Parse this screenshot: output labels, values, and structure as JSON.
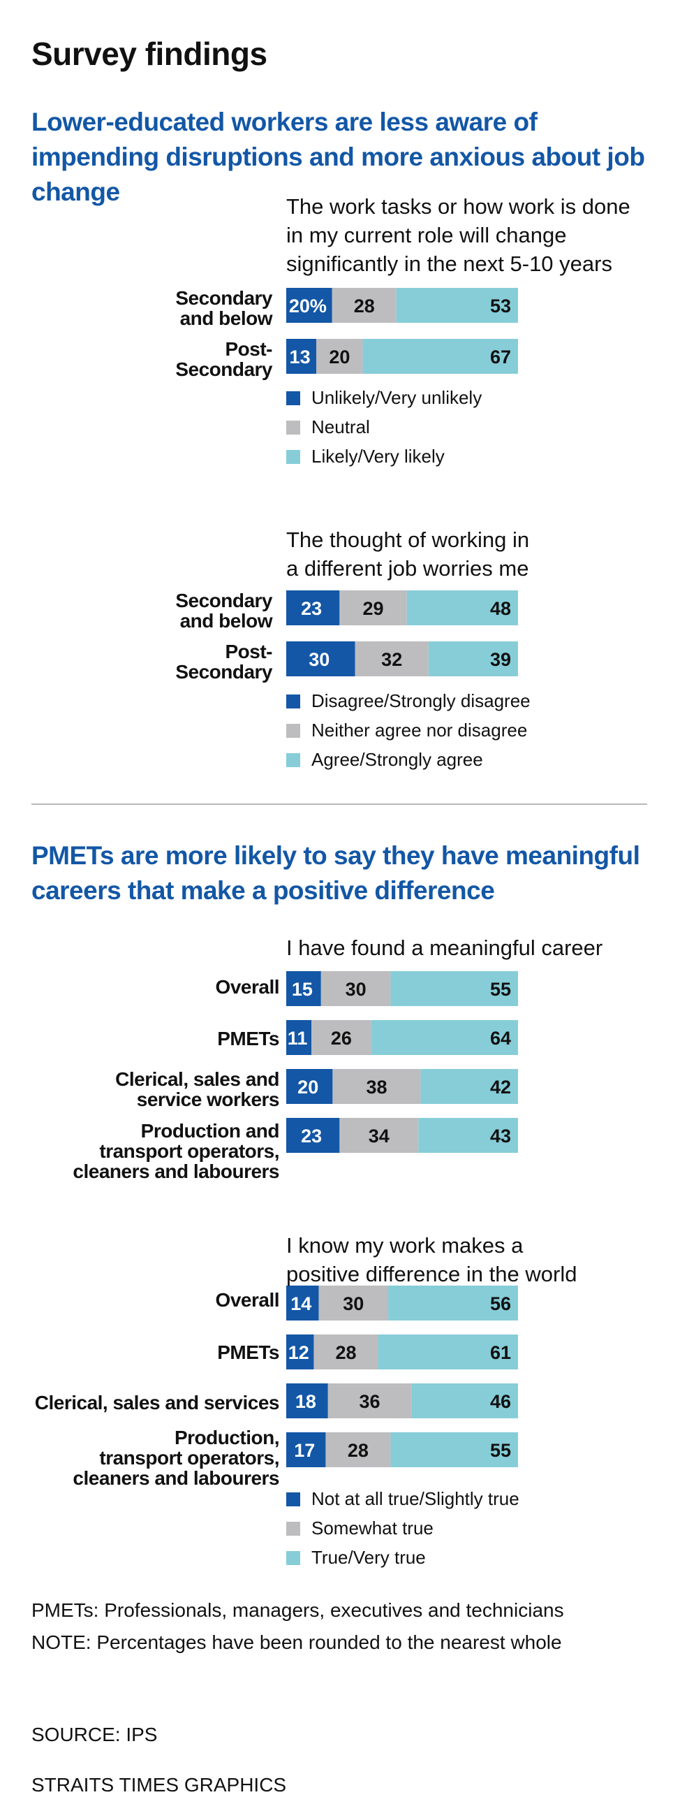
{
  "page_title": "Survey findings",
  "colors": {
    "negative": "#1357a6",
    "neutral": "#bdbdbf",
    "positive": "#86cdd8",
    "heading": "#1357a6"
  },
  "sections": [
    {
      "title": "Lower-educated workers are less aware of impending disruptions and more anxious about job change"
    },
    {
      "title": "PMETs are more likely to say they have meaningful careers that make a positive difference"
    }
  ],
  "chart_data": [
    {
      "type": "bar",
      "orientation": "horizontal-stacked",
      "title": "The work tasks or how work is done in my current role will change significantly in the next 5-10 years",
      "categories": [
        "Secondary and below",
        "Post-Secondary"
      ],
      "series": [
        {
          "name": "Unlikely/Very unlikely",
          "values": [
            20,
            13
          ],
          "labels": [
            "20%",
            "13"
          ]
        },
        {
          "name": "Neutral",
          "values": [
            28,
            20
          ],
          "labels": [
            "28",
            "20"
          ]
        },
        {
          "name": "Likely/Very likely",
          "values": [
            53,
            67
          ],
          "labels": [
            "53",
            "67"
          ]
        }
      ]
    },
    {
      "type": "bar",
      "orientation": "horizontal-stacked",
      "title": "The thought of working in a different job worries me",
      "categories": [
        "Secondary and below",
        "Post-Secondary"
      ],
      "series": [
        {
          "name": "Disagree/Strongly disagree",
          "values": [
            23,
            30
          ],
          "labels": [
            "23",
            "30"
          ]
        },
        {
          "name": "Neither agree nor disagree",
          "values": [
            29,
            32
          ],
          "labels": [
            "29",
            "32"
          ]
        },
        {
          "name": "Agree/Strongly agree",
          "values": [
            48,
            39
          ],
          "labels": [
            "48",
            "39"
          ]
        }
      ]
    },
    {
      "type": "bar",
      "orientation": "horizontal-stacked",
      "title": "I have found a meaningful career",
      "categories": [
        "Overall",
        "PMETs",
        "Clerical, sales and service workers",
        "Production and transport operators, cleaners and labourers"
      ],
      "series": [
        {
          "name": "Not at all true/Slightly true",
          "values": [
            15,
            11,
            20,
            23
          ],
          "labels": [
            "15",
            "11",
            "20",
            "23"
          ]
        },
        {
          "name": "Somewhat true",
          "values": [
            30,
            26,
            38,
            34
          ],
          "labels": [
            "30",
            "26",
            "38",
            "34"
          ]
        },
        {
          "name": "True/Very true",
          "values": [
            55,
            64,
            42,
            43
          ],
          "labels": [
            "55",
            "64",
            "42",
            "43"
          ]
        }
      ]
    },
    {
      "type": "bar",
      "orientation": "horizontal-stacked",
      "title": "I know my work makes a positive difference in the world",
      "categories": [
        "Overall",
        "PMETs",
        "Clerical, sales and services",
        "Production, transport operators, cleaners and labourers"
      ],
      "series": [
        {
          "name": "Not at all true/Slightly true",
          "values": [
            14,
            12,
            18,
            17
          ],
          "labels": [
            "14",
            "12",
            "18",
            "17"
          ]
        },
        {
          "name": "Somewhat true",
          "values": [
            30,
            28,
            36,
            28
          ],
          "labels": [
            "30",
            "28",
            "36",
            "28"
          ]
        },
        {
          "name": "True/Very true",
          "values": [
            56,
            61,
            46,
            55
          ],
          "labels": [
            "56",
            "61",
            "46",
            "55"
          ]
        }
      ]
    }
  ],
  "row_labels": {
    "c1": [
      "Secondary\nand below",
      "Post-\nSecondary"
    ],
    "c2": [
      "Secondary\nand below",
      "Post-\nSecondary"
    ],
    "c3": [
      "Overall",
      "PMETs",
      "Clerical, sales and\nservice workers",
      "Production and\ntransport operators,\ncleaners and labourers"
    ],
    "c4": [
      "Overall",
      "PMETs",
      "Clerical, sales and services",
      "Production,\ntransport operators,\ncleaners and labourers"
    ]
  },
  "question_lines": {
    "c1": [
      "The work tasks or how work is done",
      "in my current role will change",
      "significantly in the next 5-10 years"
    ],
    "c2": [
      "The thought of working in",
      "a different job worries me"
    ],
    "c3": [
      "I have found a meaningful career"
    ],
    "c4": [
      "I know my work makes a",
      "positive difference in the world"
    ]
  },
  "footnotes": {
    "pmets": "PMETs: Professionals, managers, executives and technicians",
    "note": "NOTE: Percentages have been rounded to the nearest whole",
    "source": "SOURCE: IPS",
    "credit": "STRAITS TIMES GRAPHICS"
  }
}
